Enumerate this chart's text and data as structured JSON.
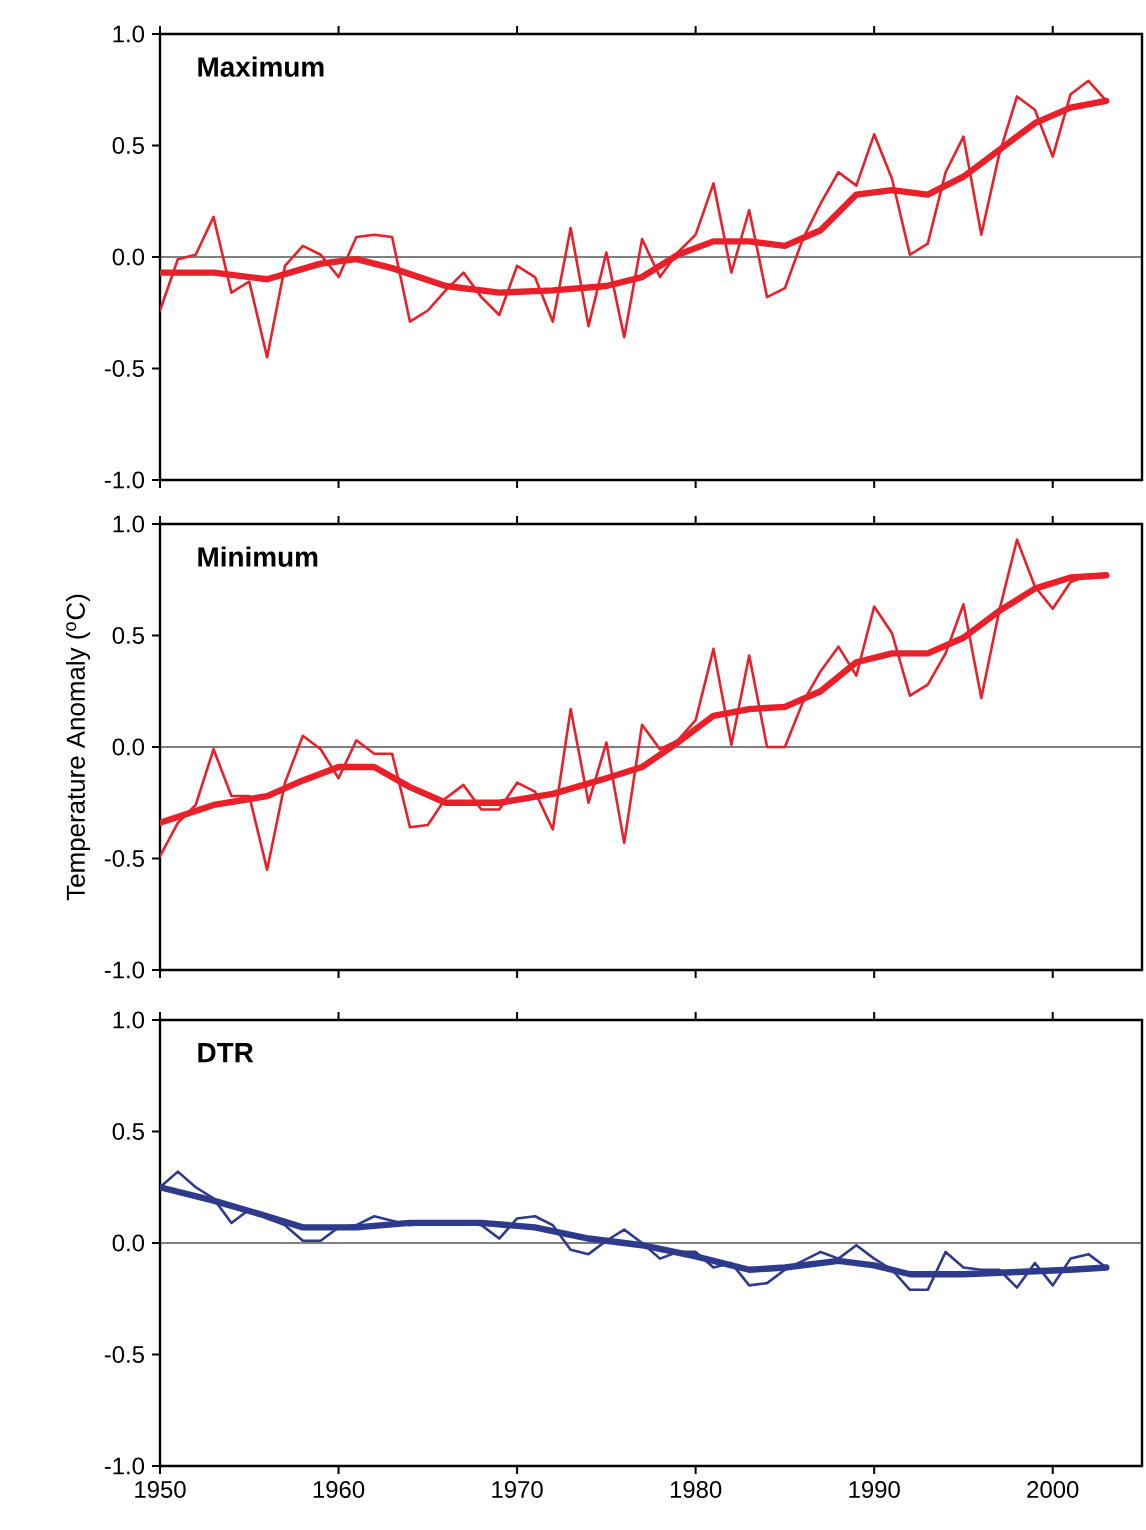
{
  "chart_data": [
    {
      "type": "line",
      "title": "Maximum",
      "xlim": [
        1950,
        2005
      ],
      "ylim": [
        -1,
        1
      ],
      "tick_labels": "y",
      "xticks": [
        1950,
        1960,
        1970,
        1980,
        1990,
        2000
      ],
      "yticks": [
        {
          "value": -1,
          "label": "-1.0"
        },
        {
          "value": -0.5,
          "label": "-0.5"
        },
        {
          "value": 0,
          "label": "0.0"
        },
        {
          "value": 0.5,
          "label": "0.5"
        },
        {
          "value": 1,
          "label": "1.0"
        }
      ],
      "ref_lines": [
        {
          "axis": "y",
          "value": 0,
          "color": "#000000"
        }
      ],
      "x": [
        1950,
        1951,
        1952,
        1953,
        1954,
        1955,
        1956,
        1957,
        1958,
        1959,
        1960,
        1961,
        1962,
        1963,
        1964,
        1965,
        1966,
        1967,
        1968,
        1969,
        1970,
        1971,
        1972,
        1973,
        1974,
        1975,
        1976,
        1977,
        1978,
        1979,
        1980,
        1981,
        1982,
        1983,
        1984,
        1985,
        1986,
        1987,
        1988,
        1989,
        1990,
        1991,
        1992,
        1993,
        1994,
        1995,
        1996,
        1997,
        1998,
        1999,
        2000,
        2001,
        2002,
        2003
      ],
      "series": [
        {
          "color": "#e8202a",
          "values": [
            -0.24,
            -0.01,
            0.01,
            0.18,
            -0.16,
            -0.11,
            -0.45,
            -0.04,
            0.05,
            0.01,
            -0.09,
            0.09,
            0.1,
            0.09,
            -0.29,
            -0.24,
            -0.15,
            -0.07,
            -0.18,
            -0.26,
            -0.04,
            -0.09,
            -0.29,
            0.13,
            -0.31,
            0.02,
            -0.36,
            0.08,
            -0.09,
            0.02,
            0.1,
            0.33,
            -0.07,
            0.21,
            -0.18,
            -0.14,
            0.08,
            0.24,
            0.38,
            0.32,
            0.55,
            0.35,
            0.01,
            0.06,
            0.38,
            0.54,
            0.1,
            0.46,
            0.72,
            0.66,
            0.45,
            0.73,
            0.79,
            0.7
          ]
        },
        {
          "color": "#e8202a",
          "x": [
            1950,
            1953,
            1956,
            1959,
            1961,
            1963,
            1966,
            1969,
            1972,
            1975,
            1977,
            1979,
            1981,
            1983,
            1985,
            1987,
            1989,
            1991,
            1993,
            1995,
            1997,
            1999,
            2001,
            2003
          ],
          "values": [
            -0.07,
            -0.07,
            -0.1,
            -0.03,
            -0.01,
            -0.05,
            -0.13,
            -0.16,
            -0.15,
            -0.13,
            -0.09,
            0.01,
            0.07,
            0.07,
            0.05,
            0.12,
            0.28,
            0.3,
            0.28,
            0.36,
            0.48,
            0.6,
            0.67,
            0.7
          ]
        }
      ]
    },
    {
      "type": "line",
      "title": "Minimum",
      "ylabel": "Temperature Anomaly  ($^{o}$C)",
      "xlim": [
        1950,
        2005
      ],
      "ylim": [
        -1,
        1
      ],
      "tick_labels": "y",
      "xticks": [
        1950,
        1960,
        1970,
        1980,
        1990,
        2000
      ],
      "yticks": [
        {
          "value": -1,
          "label": "-1.0"
        },
        {
          "value": -0.5,
          "label": "-0.5"
        },
        {
          "value": 0,
          "label": "0.0"
        },
        {
          "value": 0.5,
          "label": "0.5"
        },
        {
          "value": 1,
          "label": "1.0"
        }
      ],
      "ref_lines": [
        {
          "axis": "y",
          "value": 0,
          "color": "#000000"
        }
      ],
      "x": [
        1950,
        1951,
        1952,
        1953,
        1954,
        1955,
        1956,
        1957,
        1958,
        1959,
        1960,
        1961,
        1962,
        1963,
        1964,
        1965,
        1966,
        1967,
        1968,
        1969,
        1970,
        1971,
        1972,
        1973,
        1974,
        1975,
        1976,
        1977,
        1978,
        1979,
        1980,
        1981,
        1982,
        1983,
        1984,
        1985,
        1986,
        1987,
        1988,
        1989,
        1990,
        1991,
        1992,
        1993,
        1994,
        1995,
        1996,
        1997,
        1998,
        1999,
        2000,
        2001,
        2002,
        2003
      ],
      "series": [
        {
          "color": "#e8202a",
          "values": [
            -0.49,
            -0.34,
            -0.26,
            -0.01,
            -0.22,
            -0.22,
            -0.55,
            -0.16,
            0.05,
            -0.01,
            -0.14,
            0.03,
            -0.03,
            -0.03,
            -0.36,
            -0.35,
            -0.23,
            -0.17,
            -0.28,
            -0.28,
            -0.16,
            -0.2,
            -0.37,
            0.17,
            -0.25,
            0.02,
            -0.43,
            0.1,
            -0.01,
            0.03,
            0.12,
            0.44,
            0.01,
            0.41,
            0.0,
            0.0,
            0.2,
            0.34,
            0.45,
            0.32,
            0.63,
            0.51,
            0.23,
            0.28,
            0.42,
            0.64,
            0.22,
            0.61,
            0.93,
            0.72,
            0.62,
            0.74,
            0.77,
            0.77
          ]
        },
        {
          "color": "#e8202a",
          "x": [
            1950,
            1953,
            1956,
            1958,
            1960,
            1962,
            1964,
            1966,
            1969,
            1972,
            1975,
            1977,
            1979,
            1981,
            1983,
            1985,
            1987,
            1989,
            1991,
            1993,
            1995,
            1997,
            1999,
            2001,
            2003
          ],
          "values": [
            -0.34,
            -0.26,
            -0.22,
            -0.15,
            -0.09,
            -0.09,
            -0.18,
            -0.25,
            -0.25,
            -0.21,
            -0.14,
            -0.09,
            0.02,
            0.14,
            0.17,
            0.18,
            0.25,
            0.38,
            0.42,
            0.42,
            0.49,
            0.61,
            0.71,
            0.76,
            0.77
          ]
        }
      ]
    },
    {
      "type": "line",
      "title": "DTR",
      "xlim": [
        1950,
        2005
      ],
      "ylim": [
        -1,
        1
      ],
      "xticks": [
        1950,
        1960,
        1970,
        1980,
        1990,
        2000
      ],
      "yticks": [
        {
          "value": -1,
          "label": "-1.0"
        },
        {
          "value": -0.5,
          "label": "-0.5"
        },
        {
          "value": 0,
          "label": "0.0"
        },
        {
          "value": 0.5,
          "label": "0.5"
        },
        {
          "value": 1,
          "label": "1.0"
        }
      ],
      "ref_lines": [
        {
          "axis": "y",
          "value": 0,
          "color": "#000000"
        }
      ],
      "x": [
        1950,
        1951,
        1952,
        1953,
        1954,
        1955,
        1956,
        1957,
        1958,
        1959,
        1960,
        1961,
        1962,
        1963,
        1964,
        1965,
        1966,
        1967,
        1968,
        1969,
        1970,
        1971,
        1972,
        1973,
        1974,
        1975,
        1976,
        1977,
        1978,
        1979,
        1980,
        1981,
        1982,
        1983,
        1984,
        1985,
        1986,
        1987,
        1988,
        1989,
        1990,
        1991,
        1992,
        1993,
        1994,
        1995,
        1996,
        1997,
        1998,
        1999,
        2000,
        2001,
        2002,
        2003
      ],
      "series": [
        {
          "color": "#2e3a8c",
          "values": [
            0.25,
            0.32,
            0.25,
            0.2,
            0.09,
            0.15,
            0.11,
            0.08,
            0.01,
            0.01,
            0.07,
            0.08,
            0.12,
            0.1,
            0.08,
            0.09,
            0.09,
            0.09,
            0.08,
            0.02,
            0.11,
            0.12,
            0.08,
            -0.03,
            -0.05,
            0.01,
            0.06,
            0.0,
            -0.07,
            -0.04,
            -0.04,
            -0.11,
            -0.09,
            -0.19,
            -0.18,
            -0.12,
            -0.08,
            -0.04,
            -0.07,
            -0.01,
            -0.07,
            -0.12,
            -0.21,
            -0.21,
            -0.04,
            -0.11,
            -0.12,
            -0.12,
            -0.2,
            -0.09,
            -0.19,
            -0.07,
            -0.05,
            -0.11
          ]
        },
        {
          "color": "#2e3a8c",
          "x": [
            1950,
            1953,
            1956,
            1958,
            1961,
            1964,
            1968,
            1971,
            1974,
            1977,
            1980,
            1983,
            1985,
            1988,
            1990,
            1992,
            1995,
            1998,
            2001,
            2003
          ],
          "values": [
            0.25,
            0.19,
            0.12,
            0.07,
            0.07,
            0.09,
            0.09,
            0.07,
            0.02,
            -0.01,
            -0.06,
            -0.12,
            -0.11,
            -0.08,
            -0.1,
            -0.14,
            -0.14,
            -0.13,
            -0.12,
            -0.11
          ]
        }
      ]
    }
  ]
}
